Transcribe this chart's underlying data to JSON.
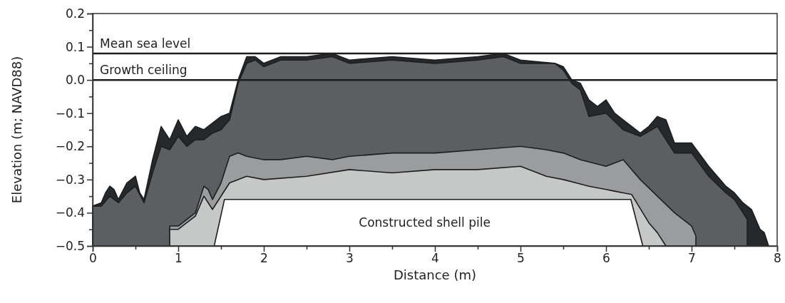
{
  "chart_data": {
    "type": "area",
    "xlabel": "Distance (m)",
    "ylabel": "Elevation (m; NAVD88)",
    "xlim": [
      0,
      8
    ],
    "ylim": [
      -0.5,
      0.2
    ],
    "xticks": [
      0,
      {
        "value": 0.5,
        "label": null
      },
      1,
      {
        "value": 1.5,
        "label": null
      },
      2,
      {
        "value": 2.5,
        "label": null
      },
      3,
      {
        "value": 3.5,
        "label": null
      },
      4,
      {
        "value": 4.5,
        "label": null
      },
      5,
      {
        "value": 5.5,
        "label": null
      },
      6,
      {
        "value": 6.5,
        "label": null
      },
      7,
      {
        "value": 7.5,
        "label": null
      },
      8
    ],
    "yticks": [
      {
        "value": -0.5,
        "label": "−0.5"
      },
      {
        "value": -0.45,
        "label": null
      },
      {
        "value": -0.4,
        "label": "−0.4"
      },
      {
        "value": -0.35,
        "label": null
      },
      {
        "value": -0.3,
        "label": "−0.3"
      },
      {
        "value": -0.25,
        "label": null
      },
      {
        "value": -0.2,
        "label": "−0.2"
      },
      {
        "value": -0.15,
        "label": null
      },
      {
        "value": -0.1,
        "label": "−0.1"
      },
      {
        "value": -0.05,
        "label": null
      },
      {
        "value": 0,
        "label": "0.0"
      },
      {
        "value": 0.05,
        "label": null
      },
      {
        "value": 0.1,
        "label": "0.1"
      },
      {
        "value": 0.15,
        "label": null
      },
      {
        "value": 0.2,
        "label": "0.2"
      }
    ],
    "grid": false,
    "series": [
      {
        "color": "#26292c",
        "x": [
          0,
          0,
          0.1,
          0.15,
          0.2,
          0.25,
          0.3,
          0.4,
          0.5,
          0.55,
          0.6,
          0.7,
          0.8,
          0.9,
          1.0,
          1.1,
          1.2,
          1.3,
          1.4,
          1.5,
          1.6,
          1.7,
          1.8,
          1.9,
          2.0,
          2.2,
          2.5,
          2.8,
          3.0,
          3.5,
          4.0,
          4.5,
          4.8,
          5.0,
          5.4,
          5.5,
          5.6,
          5.7,
          5.8,
          5.9,
          6.0,
          6.1,
          6.2,
          6.4,
          6.5,
          6.6,
          6.7,
          6.8,
          7.0,
          7.2,
          7.4,
          7.5,
          7.6,
          7.7,
          7.8,
          7.85,
          7.9
        ],
        "values": [
          -0.5,
          -0.38,
          -0.37,
          -0.34,
          -0.32,
          -0.33,
          -0.36,
          -0.31,
          -0.29,
          -0.34,
          -0.36,
          -0.24,
          -0.14,
          -0.18,
          -0.12,
          -0.17,
          -0.14,
          -0.15,
          -0.13,
          -0.11,
          -0.1,
          0.0,
          0.07,
          0.07,
          0.05,
          0.07,
          0.07,
          0.08,
          0.06,
          0.07,
          0.06,
          0.07,
          0.08,
          0.06,
          0.05,
          0.04,
          0.0,
          -0.01,
          -0.06,
          -0.08,
          -0.06,
          -0.1,
          -0.12,
          -0.16,
          -0.14,
          -0.11,
          -0.12,
          -0.19,
          -0.19,
          -0.26,
          -0.32,
          -0.34,
          -0.37,
          -0.39,
          -0.45,
          -0.46,
          -0.5
        ]
      },
      {
        "color": "#5c5f62",
        "x": [
          0,
          0,
          0.1,
          0.2,
          0.3,
          0.4,
          0.5,
          0.6,
          0.7,
          0.8,
          0.9,
          1.0,
          1.1,
          1.2,
          1.3,
          1.4,
          1.5,
          1.6,
          1.7,
          1.8,
          1.9,
          2.0,
          2.2,
          2.5,
          2.8,
          3.0,
          3.5,
          4.0,
          4.5,
          4.8,
          5.0,
          5.4,
          5.5,
          5.6,
          5.7,
          5.8,
          6.0,
          6.2,
          6.4,
          6.6,
          6.8,
          7.0,
          7.2,
          7.4,
          7.5,
          7.6,
          7.65,
          7.65
        ],
        "values": [
          -0.5,
          -0.38,
          -0.38,
          -0.35,
          -0.37,
          -0.34,
          -0.32,
          -0.37,
          -0.28,
          -0.2,
          -0.21,
          -0.17,
          -0.2,
          -0.18,
          -0.18,
          -0.16,
          -0.15,
          -0.12,
          -0.01,
          0.05,
          0.06,
          0.04,
          0.06,
          0.06,
          0.07,
          0.05,
          0.06,
          0.05,
          0.06,
          0.07,
          0.05,
          0.05,
          0.03,
          -0.01,
          -0.03,
          -0.11,
          -0.1,
          -0.15,
          -0.17,
          -0.14,
          -0.22,
          -0.22,
          -0.29,
          -0.34,
          -0.36,
          -0.4,
          -0.42,
          -0.5
        ]
      },
      {
        "color": "#9b9c9e",
        "x": [
          0.9,
          0.9,
          1.0,
          1.1,
          1.2,
          1.3,
          1.35,
          1.4,
          1.5,
          1.6,
          1.7,
          1.8,
          2.0,
          2.2,
          2.5,
          2.8,
          3.0,
          3.5,
          4.0,
          4.5,
          5.0,
          5.3,
          5.5,
          5.7,
          6.0,
          6.2,
          6.4,
          6.6,
          6.8,
          7.0,
          7.05,
          7.05
        ],
        "values": [
          -0.5,
          -0.44,
          -0.44,
          -0.42,
          -0.4,
          -0.32,
          -0.33,
          -0.36,
          -0.31,
          -0.23,
          -0.22,
          -0.23,
          -0.24,
          -0.24,
          -0.23,
          -0.24,
          -0.23,
          -0.22,
          -0.22,
          -0.21,
          -0.2,
          -0.21,
          -0.22,
          -0.24,
          -0.26,
          -0.24,
          -0.3,
          -0.35,
          -0.4,
          -0.44,
          -0.47,
          -0.5
        ]
      },
      {
        "color": "#c6c7c7",
        "x": [
          0.9,
          0.9,
          1.0,
          1.1,
          1.2,
          1.3,
          1.4,
          1.6,
          1.8,
          2.0,
          2.5,
          3.0,
          3.5,
          4.0,
          4.5,
          5.0,
          5.3,
          5.5,
          5.8,
          6.0,
          6.1,
          6.2,
          6.3,
          6.5,
          6.6,
          6.7
        ],
        "values": [
          -0.5,
          -0.45,
          -0.45,
          -0.43,
          -0.41,
          -0.35,
          -0.39,
          -0.31,
          -0.29,
          -0.3,
          -0.29,
          -0.27,
          -0.28,
          -0.27,
          -0.27,
          -0.26,
          -0.29,
          -0.3,
          -0.32,
          -0.33,
          -0.335,
          -0.34,
          -0.345,
          -0.43,
          -0.46,
          -0.5
        ]
      },
      {
        "color": "#ffffff",
        "x": [
          1.42,
          1.54,
          6.29,
          6.43
        ],
        "values": [
          -0.5,
          -0.36,
          -0.36,
          -0.5
        ]
      }
    ],
    "ref_lines": [
      {
        "axis": "y",
        "value": 0.08,
        "label": "Mean sea level"
      },
      {
        "axis": "y",
        "value": 0.0,
        "label": "Growth ceiling"
      }
    ],
    "annotations": [
      "Constructed shell pile"
    ]
  }
}
